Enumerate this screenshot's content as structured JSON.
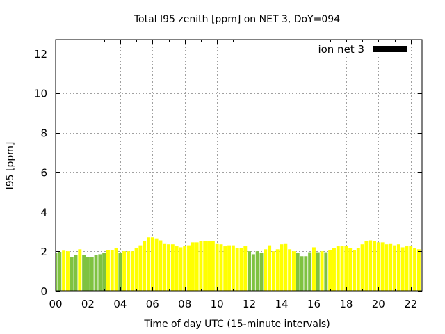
{
  "chart_data": {
    "type": "bar",
    "title": "Total I95 zenith [ppm] on NET 3, DoY=094",
    "xlabel": "Time of day UTC (15-minute intervals)",
    "ylabel": "I95 [ppm]",
    "xlim": [
      0,
      22.7
    ],
    "ylim": [
      0,
      12.7
    ],
    "grid": true,
    "legend_position": "top-right",
    "legend": [
      {
        "label": "ion net 3",
        "color": "#000000"
      }
    ],
    "xticks": [
      {
        "value": 0,
        "label": "00"
      },
      {
        "value": 2,
        "label": "02"
      },
      {
        "value": 4,
        "label": "04"
      },
      {
        "value": 6,
        "label": "06"
      },
      {
        "value": 8,
        "label": "08"
      },
      {
        "value": 10,
        "label": "10"
      },
      {
        "value": 12,
        "label": "12"
      },
      {
        "value": 14,
        "label": "14"
      },
      {
        "value": 16,
        "label": "16"
      },
      {
        "value": 18,
        "label": "18"
      },
      {
        "value": 20,
        "label": "20"
      },
      {
        "value": 22,
        "label": "22"
      }
    ],
    "yticks": [
      {
        "value": 0,
        "label": "0"
      },
      {
        "value": 2,
        "label": "2"
      },
      {
        "value": 4,
        "label": "4"
      },
      {
        "value": 6,
        "label": "6"
      },
      {
        "value": 8,
        "label": "8"
      },
      {
        "value": 10,
        "label": "10"
      },
      {
        "value": 12,
        "label": "12"
      }
    ],
    "bar_interval_hours": 0.25,
    "colors": {
      "green": "#7fc241",
      "yellow": "#ffff00"
    },
    "series": [
      {
        "name": "ion net 3",
        "values": [
          1.9,
          1.97,
          2.03,
          2.0,
          1.7,
          1.8,
          2.1,
          1.8,
          1.7,
          1.7,
          1.8,
          1.85,
          1.9,
          2.05,
          2.05,
          2.15,
          1.9,
          2.0,
          2.0,
          2.0,
          2.15,
          2.3,
          2.5,
          2.7,
          2.7,
          2.65,
          2.55,
          2.4,
          2.35,
          2.35,
          2.25,
          2.2,
          2.25,
          2.3,
          2.45,
          2.45,
          2.5,
          2.5,
          2.5,
          2.5,
          2.4,
          2.35,
          2.25,
          2.3,
          2.3,
          2.15,
          2.15,
          2.25,
          2.0,
          1.85,
          2.0,
          1.9,
          2.1,
          2.3,
          2.0,
          2.1,
          2.35,
          2.4,
          2.1,
          2.0,
          1.9,
          1.75,
          1.75,
          1.95,
          2.2,
          1.95,
          2.0,
          1.95,
          2.05,
          2.15,
          2.25,
          2.25,
          2.25,
          2.15,
          2.05,
          2.15,
          2.35,
          2.5,
          2.55,
          2.5,
          2.45,
          2.45,
          2.35,
          2.4,
          2.3,
          2.35,
          2.2,
          2.25,
          2.25,
          2.15,
          2.1
        ],
        "bar_colors": [
          "green",
          "green",
          "yellow",
          "yellow",
          "green",
          "green",
          "yellow",
          "green",
          "green",
          "green",
          "green",
          "green",
          "green",
          "yellow",
          "yellow",
          "yellow",
          "green",
          "yellow",
          "yellow",
          "yellow",
          "yellow",
          "yellow",
          "yellow",
          "yellow",
          "yellow",
          "yellow",
          "yellow",
          "yellow",
          "yellow",
          "yellow",
          "yellow",
          "yellow",
          "yellow",
          "yellow",
          "yellow",
          "yellow",
          "yellow",
          "yellow",
          "yellow",
          "yellow",
          "yellow",
          "yellow",
          "yellow",
          "yellow",
          "yellow",
          "yellow",
          "yellow",
          "yellow",
          "green",
          "green",
          "green",
          "green",
          "yellow",
          "yellow",
          "yellow",
          "yellow",
          "yellow",
          "yellow",
          "yellow",
          "yellow",
          "green",
          "green",
          "green",
          "green",
          "yellow",
          "green",
          "yellow",
          "green",
          "yellow",
          "yellow",
          "yellow",
          "yellow",
          "yellow",
          "yellow",
          "yellow",
          "yellow",
          "yellow",
          "yellow",
          "yellow",
          "yellow",
          "yellow",
          "yellow",
          "yellow",
          "yellow",
          "yellow",
          "yellow",
          "yellow",
          "yellow",
          "yellow",
          "yellow",
          "yellow"
        ]
      }
    ]
  }
}
